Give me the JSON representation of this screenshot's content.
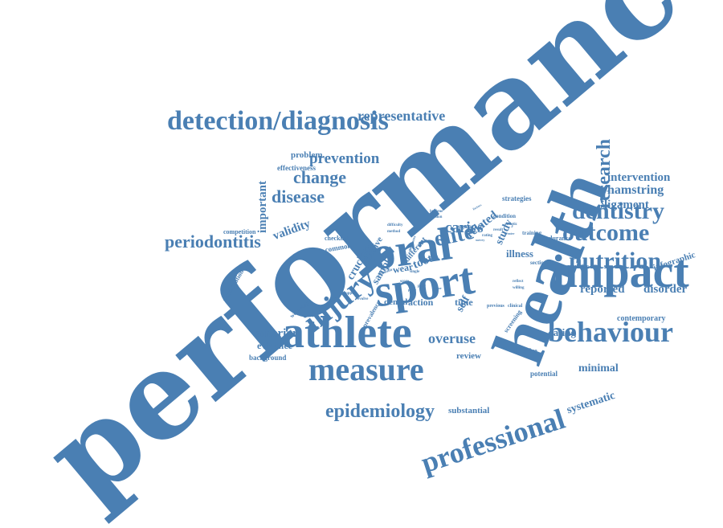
{
  "color": "#4a7fb3",
  "words": [
    "performance",
    "health",
    "oral",
    "sport",
    "athlete",
    "impact",
    "injury",
    "measure",
    "behaviour",
    "professional",
    "detection/diagnosis",
    "nutrition",
    "outcome",
    "dentistry",
    "elite",
    "epidemiology",
    "research",
    "periodontitis",
    "disease",
    "change",
    "prevention",
    "representative",
    "caries",
    "reported",
    "disorder",
    "intervention",
    "hamstring",
    "ligament",
    "overuse",
    "anterior",
    "evidence",
    "systematic",
    "minimal",
    "eating",
    "illness",
    "validity",
    "important",
    "cruciate",
    "sample",
    "effective",
    "related",
    "study",
    "tooth",
    "wear",
    "different",
    "self",
    "dental",
    "action",
    "time",
    "review",
    "substantial",
    "contemporary",
    "infographic",
    "potential",
    "objective",
    "screening",
    "problem",
    "effectiveness",
    "competition",
    "participation",
    "wellbeing",
    "background",
    "prevalence",
    "checklist",
    "common",
    "strategies",
    "condition",
    "athletic",
    "training",
    "endurance",
    "conclusion",
    "sectional",
    "hygiene",
    "erosion",
    "regular",
    "difficulty",
    "method",
    "support",
    "evolve",
    "previous",
    "clinical",
    "reflect",
    "willing",
    "rating",
    "factors",
    "greater",
    "result",
    "survey",
    "poor",
    "score",
    "paper",
    "abrasion",
    "single",
    "measures",
    "adjust",
    "tissue"
  ]
}
